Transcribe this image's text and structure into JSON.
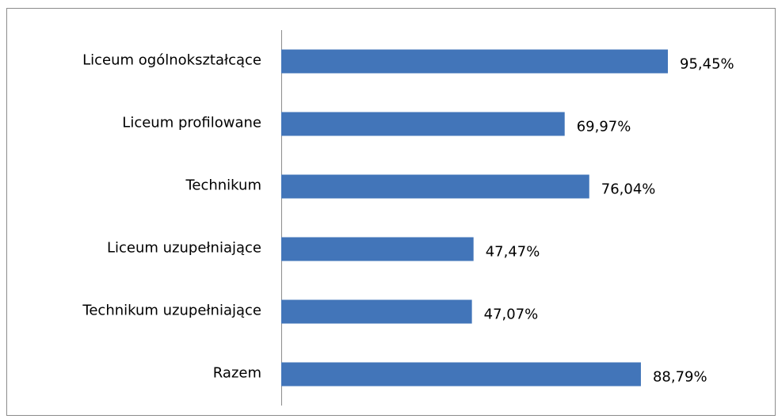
{
  "chart_data": {
    "type": "bar",
    "orientation": "horizontal",
    "categories": [
      "Liceum ogólnokształcące",
      "Liceum profilowane",
      "Technikum",
      "Liceum uzupełniające",
      "Technikum uzupełniające",
      "Razem"
    ],
    "values": [
      95.45,
      69.97,
      76.04,
      47.47,
      47.07,
      88.79
    ],
    "value_labels": [
      "95,45%",
      "69,97%",
      "76,04%",
      "47,47%",
      "47,07%",
      "88,79%"
    ],
    "color": "#4275b9"
  }
}
